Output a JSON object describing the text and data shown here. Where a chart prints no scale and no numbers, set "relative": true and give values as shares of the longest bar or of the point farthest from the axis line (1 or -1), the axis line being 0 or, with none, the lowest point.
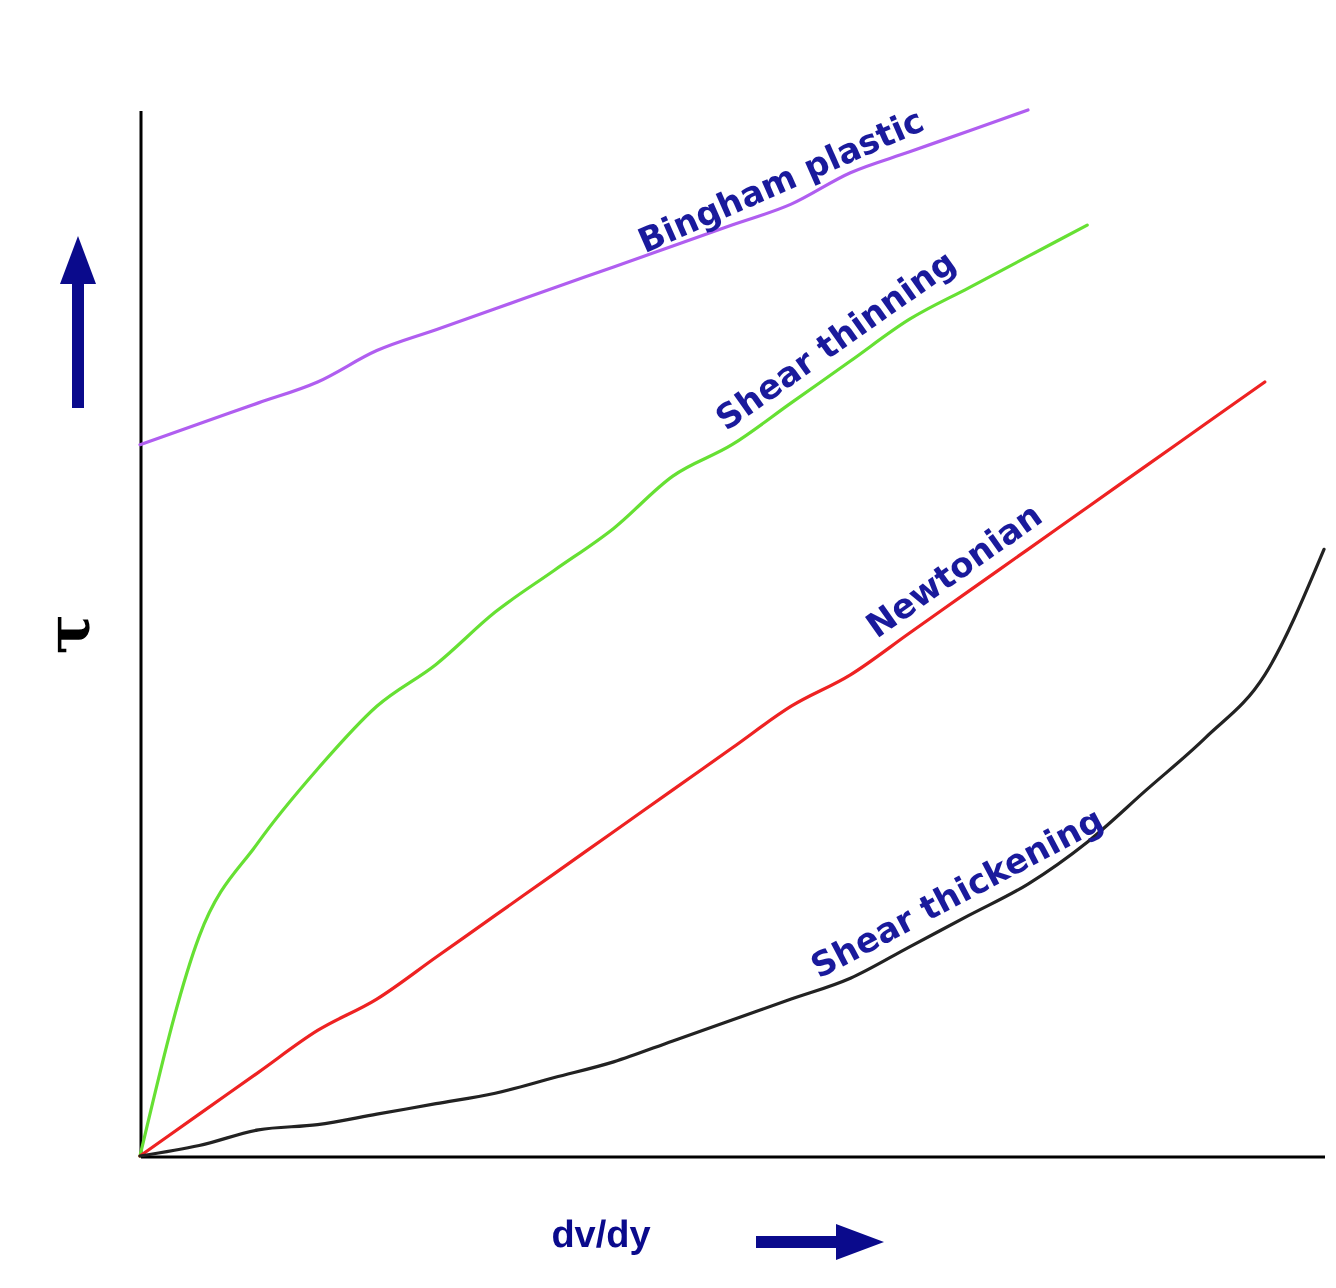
{
  "chart_data": {
    "type": "line",
    "relative": true,
    "xlabel": "dv/dy",
    "ylabel": "τ",
    "legend": false,
    "marker": "none",
    "line_style": "solid",
    "grid": false,
    "categories": [
      null,
      null,
      null,
      null,
      null,
      null,
      null,
      null,
      null,
      null,
      null,
      null,
      null,
      null,
      null,
      null,
      null,
      null,
      null,
      null,
      null
    ],
    "series": [
      {
        "name": "Bingham plastic",
        "color": "#b05ef0",
        "values": [
          0.68,
          0.7,
          0.72,
          0.74,
          0.77,
          0.79,
          0.81,
          0.83,
          0.85,
          0.87,
          0.89,
          0.91,
          0.94,
          0.96,
          0.98,
          1.0,
          null,
          null,
          null,
          null,
          null
        ]
      },
      {
        "name": "Shear thinning",
        "color": "#66e033",
        "values": [
          0,
          0.21,
          0.3,
          0.37,
          0.43,
          0.47,
          0.52,
          0.56,
          0.6,
          0.65,
          0.68,
          0.72,
          0.76,
          0.8,
          0.83,
          0.86,
          0.89,
          null,
          null,
          null,
          null
        ]
      },
      {
        "name": "Newtonian",
        "color": "#ee2222",
        "values": [
          0,
          0.04,
          0.08,
          0.12,
          0.15,
          0.19,
          0.23,
          0.27,
          0.31,
          0.35,
          0.39,
          0.43,
          0.46,
          0.5,
          0.54,
          0.58,
          0.62,
          0.66,
          0.7,
          0.74,
          null
        ]
      },
      {
        "name": "Shear thickening",
        "color": "#222222",
        "values": [
          0,
          0.01,
          0.025,
          0.03,
          0.04,
          0.05,
          0.06,
          0.075,
          0.09,
          0.11,
          0.13,
          0.15,
          0.17,
          0.2,
          0.23,
          0.26,
          0.3,
          0.35,
          0.4,
          0.46,
          0.58
        ]
      }
    ]
  }
}
